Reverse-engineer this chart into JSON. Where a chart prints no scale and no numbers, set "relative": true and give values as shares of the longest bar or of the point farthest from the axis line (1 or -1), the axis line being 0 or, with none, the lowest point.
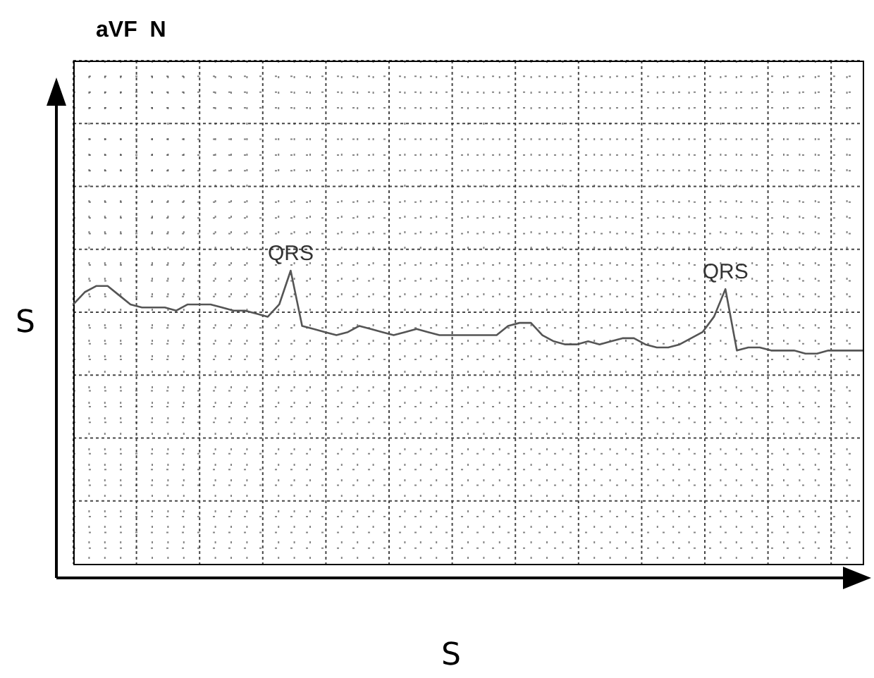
{
  "chart_data": {
    "type": "line",
    "title": "aVF  N",
    "xlabel": "S",
    "ylabel": "S",
    "relative": true,
    "grid": true,
    "legend": false,
    "marker": "none",
    "line_style": "solid",
    "categories": [
      null,
      null,
      null,
      null,
      null,
      null,
      null,
      null,
      null,
      null,
      null,
      null,
      null,
      null,
      null,
      null,
      null,
      null,
      null,
      null,
      null,
      null,
      null,
      null,
      null,
      null,
      null,
      null,
      null,
      null,
      null,
      null,
      null,
      null,
      null,
      null,
      null,
      null,
      null,
      null,
      null,
      null,
      null,
      null,
      null,
      null,
      null,
      null,
      null,
      null,
      null,
      null,
      null,
      null,
      null,
      null,
      null,
      null,
      null,
      null,
      null,
      null,
      null,
      null,
      null,
      null,
      null,
      null,
      null,
      null
    ],
    "series": [
      {
        "color": "#555555",
        "values": [
          0.89,
          0.93,
          0.95,
          0.95,
          0.92,
          0.89,
          0.88,
          0.88,
          0.88,
          0.87,
          0.89,
          0.89,
          0.89,
          0.88,
          0.87,
          0.87,
          0.86,
          0.85,
          0.89,
          1,
          0.82,
          0.81,
          0.8,
          0.79,
          0.8,
          0.82,
          0.81,
          0.8,
          0.79,
          0.8,
          0.81,
          0.8,
          0.79,
          0.79,
          0.79,
          0.79,
          0.79,
          0.79,
          0.82,
          0.83,
          0.83,
          0.79,
          0.77,
          0.76,
          0.76,
          0.77,
          0.76,
          0.77,
          0.78,
          0.78,
          0.76,
          0.75,
          0.75,
          0.76,
          0.78,
          0.8,
          0.85,
          0.94,
          0.74,
          0.75,
          0.75,
          0.74,
          0.74,
          0.74,
          0.73,
          0.73,
          0.74,
          0.74,
          0.74,
          0.74
        ]
      }
    ],
    "annotations": [
      {
        "text": "QRS",
        "y": 1
      },
      {
        "text": "QRS",
        "y": 0.94
      }
    ]
  }
}
